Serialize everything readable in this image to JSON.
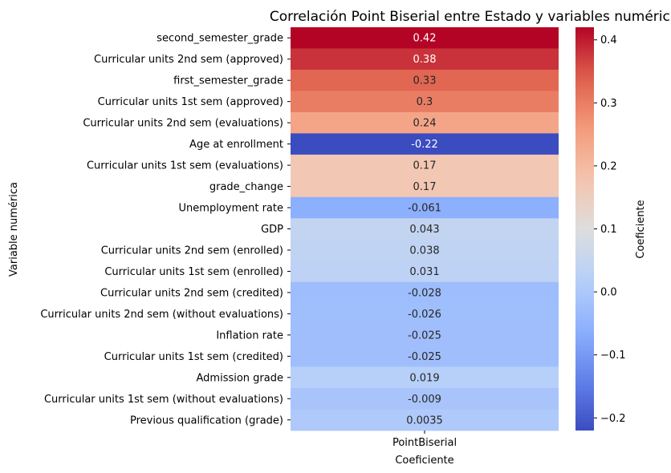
{
  "chart_data": {
    "type": "heatmap",
    "title": "Correlación Point Biserial entre Estado y variables numéricas",
    "xlabel": "Coeficiente",
    "ylabel": "Variable numérica",
    "columns": [
      "PointBiserial"
    ],
    "rows": [
      "second_semester_grade",
      "Curricular units 2nd sem (approved)",
      "first_semester_grade",
      "Curricular units 1st sem (approved)",
      "Curricular units 2nd sem (evaluations)",
      "Age at enrollment",
      "Curricular units 1st sem (evaluations)",
      "grade_change",
      "Unemployment rate",
      "GDP",
      "Curricular units 2nd sem (enrolled)",
      "Curricular units 1st sem (enrolled)",
      "Curricular units 2nd sem (credited)",
      "Curricular units 2nd sem (without evaluations)",
      "Inflation rate",
      "Curricular units 1st sem (credited)",
      "Admission grade",
      "Curricular units 1st sem (without evaluations)",
      "Previous qualification (grade)"
    ],
    "values": [
      0.42,
      0.38,
      0.33,
      0.3,
      0.24,
      -0.22,
      0.17,
      0.17,
      -0.061,
      0.043,
      0.038,
      0.031,
      -0.028,
      -0.026,
      -0.025,
      -0.025,
      0.019,
      -0.009,
      0.0035
    ],
    "annotations": [
      "0.42",
      "0.38",
      "0.33",
      "0.3",
      "0.24",
      "-0.22",
      "0.17",
      "0.17",
      "-0.061",
      "0.043",
      "0.038",
      "0.031",
      "-0.028",
      "-0.026",
      "-0.025",
      "-0.025",
      "0.019",
      "-0.009",
      "0.0035"
    ],
    "colormap": "coolwarm",
    "colorbar": {
      "label": "Coeficiente",
      "range": [
        -0.22,
        0.42
      ],
      "ticks": [
        0.4,
        0.3,
        0.2,
        0.1,
        0.0,
        -0.1,
        -0.2
      ],
      "tick_labels": [
        "0.4",
        "0.3",
        "0.2",
        "0.1",
        "0.0",
        "−0.1",
        "−0.2"
      ]
    },
    "grid": false
  }
}
